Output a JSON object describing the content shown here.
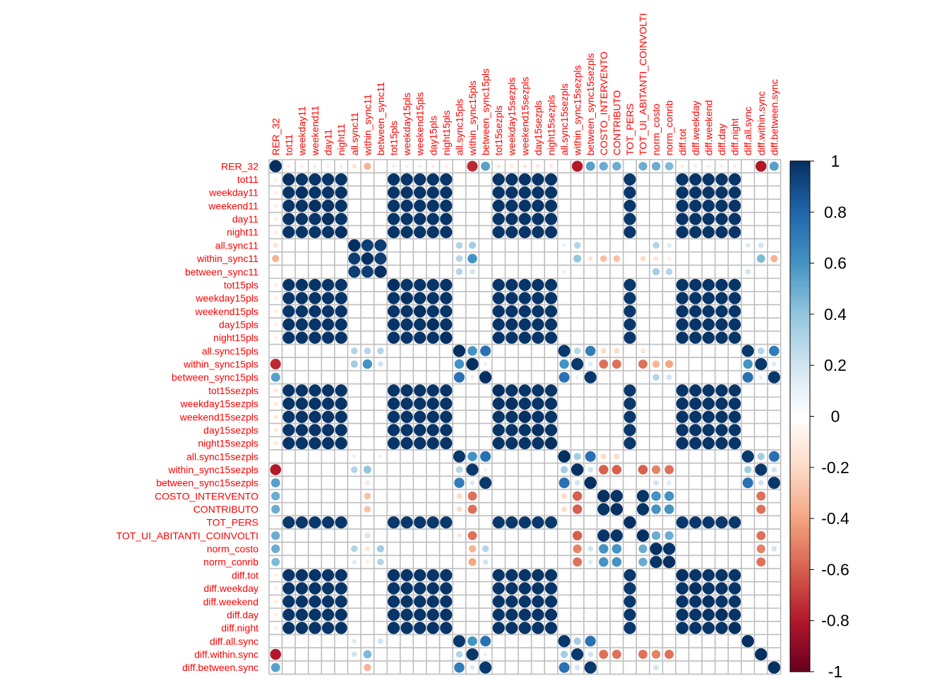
{
  "colors": {
    "label": "#FF0000",
    "grid": "#BEBEBE",
    "scale": [
      "#67001F",
      "#B2182B",
      "#D6604D",
      "#F4A582",
      "#FDDBC7",
      "#FFFFFF",
      "#D1E5F0",
      "#92C5DE",
      "#4393C3",
      "#2166AC",
      "#053061"
    ]
  },
  "chart_data": {
    "type": "heatmap",
    "style": "corrplot-circle",
    "variables": [
      "RER_32",
      "tot11",
      "weekday11",
      "weekend11",
      "day11",
      "night11",
      "all.sync11",
      "within_sync11",
      "between_sync11",
      "tot15pls",
      "weekday15pls",
      "weekend15pls",
      "day15pls",
      "night15pls",
      "all.sync15pls",
      "within_sync15pls",
      "between_sync15pls",
      "tot15sezpls",
      "weekday15sezpls",
      "weekend15sezpls",
      "day15sezpls",
      "night15sezpls",
      "all.sync15sezpls",
      "within_sync15sezpls",
      "between_sync15sezpls",
      "COSTO_INTERVENTO",
      "CONTRIBUTO",
      "TOT_PERS",
      "TOT_UI_ABITANTI_COINVOLTI",
      "norm_costo",
      "norm_conrib",
      "diff.tot",
      "diff.weekday",
      "diff.weekend",
      "diff.day",
      "diff.night",
      "diff.all.sync",
      "diff.within.sync",
      "diff.between.sync"
    ],
    "groups": [
      {
        "members": [
          "tot11",
          "weekday11",
          "weekend11",
          "day11",
          "night11",
          "tot15pls",
          "weekday15pls",
          "weekend15pls",
          "day15pls",
          "night15pls",
          "tot15sezpls",
          "weekday15sezpls",
          "weekend15sezpls",
          "day15sezpls",
          "night15sezpls",
          "diff.tot",
          "diff.weekday",
          "diff.weekend",
          "diff.day",
          "diff.night"
        ],
        "r": 0.98
      },
      {
        "members": [
          "all.sync11",
          "within_sync11",
          "between_sync11"
        ],
        "r": 0.95
      },
      {
        "members": [
          "COSTO_INTERVENTO",
          "CONTRIBUTO",
          "TOT_UI_ABITANTI_COINVOLTI"
        ],
        "r": 0.98
      },
      {
        "members": [
          "norm_costo",
          "norm_conrib"
        ],
        "r": 0.98
      },
      {
        "members": [
          "all.sync15pls",
          "all.sync15sezpls",
          "diff.all.sync"
        ],
        "r": 0.97
      },
      {
        "members": [
          "within_sync15pls",
          "within_sync15sezpls",
          "diff.within.sync"
        ],
        "r": 0.97
      },
      {
        "members": [
          "between_sync15pls",
          "between_sync15sezpls",
          "diff.between.sync"
        ],
        "r": 0.97
      }
    ],
    "pairs": [
      [
        "RER_32",
        "within_sync15pls",
        -0.75
      ],
      [
        "RER_32",
        "within_sync15sezpls",
        -0.8
      ],
      [
        "RER_32",
        "diff.within.sync",
        -0.8
      ],
      [
        "RER_32",
        "between_sync15pls",
        0.55
      ],
      [
        "RER_32",
        "between_sync15sezpls",
        0.55
      ],
      [
        "RER_32",
        "diff.between.sync",
        0.55
      ],
      [
        "RER_32",
        "within_sync11",
        -0.35
      ],
      [
        "RER_32",
        "all.sync11",
        -0.15
      ],
      [
        "RER_32",
        "COSTO_INTERVENTO",
        0.5
      ],
      [
        "RER_32",
        "CONTRIBUTO",
        0.5
      ],
      [
        "RER_32",
        "TOT_UI_ABITANTI_COINVOLTI",
        0.5
      ],
      [
        "RER_32",
        "norm_costo",
        0.5
      ],
      [
        "RER_32",
        "norm_conrib",
        0.45
      ],
      [
        "RER_32",
        "tot11",
        -0.1
      ],
      [
        "RER_32",
        "weekday11",
        -0.1
      ],
      [
        "RER_32",
        "weekend11",
        -0.1
      ],
      [
        "RER_32",
        "day11",
        -0.1
      ],
      [
        "RER_32",
        "night11",
        -0.1
      ],
      [
        "RER_32",
        "tot15pls",
        -0.1
      ],
      [
        "RER_32",
        "weekday15pls",
        -0.1
      ],
      [
        "RER_32",
        "weekend15pls",
        -0.1
      ],
      [
        "RER_32",
        "day15pls",
        -0.1
      ],
      [
        "RER_32",
        "night15pls",
        -0.1
      ],
      [
        "RER_32",
        "tot15sezpls",
        -0.12
      ],
      [
        "RER_32",
        "weekday15sezpls",
        -0.12
      ],
      [
        "RER_32",
        "weekend15sezpls",
        -0.12
      ],
      [
        "RER_32",
        "day15sezpls",
        -0.12
      ],
      [
        "RER_32",
        "night15sezpls",
        -0.12
      ],
      [
        "RER_32",
        "diff.tot",
        -0.1
      ],
      [
        "RER_32",
        "diff.weekday",
        -0.1
      ],
      [
        "RER_32",
        "diff.weekend",
        -0.1
      ],
      [
        "RER_32",
        "diff.day",
        -0.1
      ],
      [
        "RER_32",
        "diff.night",
        -0.1
      ],
      [
        "all.sync11",
        "all.sync15pls",
        0.3
      ],
      [
        "all.sync11",
        "within_sync15pls",
        0.35
      ],
      [
        "all.sync11",
        "all.sync15sezpls",
        0.1
      ],
      [
        "all.sync11",
        "within_sync15sezpls",
        0.3
      ],
      [
        "all.sync11",
        "diff.all.sync",
        0.15
      ],
      [
        "all.sync11",
        "diff.within.sync",
        0.2
      ],
      [
        "all.sync11",
        "norm_costo",
        0.3
      ],
      [
        "all.sync11",
        "norm_conrib",
        0.15
      ],
      [
        "within_sync11",
        "all.sync15pls",
        0.3
      ],
      [
        "within_sync11",
        "within_sync15pls",
        0.6
      ],
      [
        "within_sync11",
        "within_sync15sezpls",
        0.4
      ],
      [
        "within_sync11",
        "diff.within.sync",
        0.45
      ],
      [
        "within_sync11",
        "COSTO_INTERVENTO",
        -0.3
      ],
      [
        "within_sync11",
        "CONTRIBUTO",
        -0.3
      ],
      [
        "within_sync11",
        "TOT_UI_ABITANTI_COINVOLTI",
        -0.2
      ],
      [
        "within_sync11",
        "norm_costo",
        -0.15
      ],
      [
        "within_sync11",
        "norm_conrib",
        -0.1
      ],
      [
        "within_sync11",
        "diff.between.sync",
        -0.35
      ],
      [
        "within_sync11",
        "between_sync15sezpls",
        -0.15
      ],
      [
        "between_sync11",
        "all.sync15pls",
        0.3
      ],
      [
        "between_sync11",
        "within_sync15pls",
        0.2
      ],
      [
        "between_sync11",
        "norm_costo",
        0.35
      ],
      [
        "between_sync11",
        "norm_conrib",
        0.3
      ],
      [
        "between_sync11",
        "diff.all.sync",
        0.2
      ],
      [
        "between_sync11",
        "all.sync15sezpls",
        0.1
      ],
      [
        "all.sync15pls",
        "within_sync15pls",
        0.6
      ],
      [
        "all.sync15pls",
        "between_sync15pls",
        0.75
      ],
      [
        "all.sync15pls",
        "all.sync15sezpls",
        0.97
      ],
      [
        "all.sync15pls",
        "within_sync15sezpls",
        0.3
      ],
      [
        "all.sync15pls",
        "between_sync15sezpls",
        0.7
      ],
      [
        "all.sync15pls",
        "diff.within.sync",
        0.3
      ],
      [
        "all.sync15pls",
        "diff.between.sync",
        0.7
      ],
      [
        "all.sync15pls",
        "COSTO_INTERVENTO",
        -0.2
      ],
      [
        "all.sync15pls",
        "CONTRIBUTO",
        -0.2
      ],
      [
        "all.sync15pls",
        "TOT_UI_ABITANTI_COINVOLTI",
        -0.15
      ],
      [
        "within_sync15pls",
        "between_sync15pls",
        0.1
      ],
      [
        "within_sync15pls",
        "all.sync15sezpls",
        0.6
      ],
      [
        "within_sync15pls",
        "between_sync15sezpls",
        0.15
      ],
      [
        "within_sync15pls",
        "diff.all.sync",
        0.6
      ],
      [
        "within_sync15pls",
        "diff.between.sync",
        0.15
      ],
      [
        "within_sync15pls",
        "COSTO_INTERVENTO",
        -0.55
      ],
      [
        "within_sync15pls",
        "CONTRIBUTO",
        -0.55
      ],
      [
        "within_sync15pls",
        "TOT_UI_ABITANTI_COINVOLTI",
        -0.55
      ],
      [
        "within_sync15pls",
        "norm_costo",
        -0.35
      ],
      [
        "within_sync15pls",
        "norm_conrib",
        -0.4
      ],
      [
        "between_sync15pls",
        "all.sync15sezpls",
        0.75
      ],
      [
        "between_sync15pls",
        "within_sync15sezpls",
        0.1
      ],
      [
        "between_sync15pls",
        "diff.all.sync",
        0.75
      ],
      [
        "between_sync15pls",
        "diff.within.sync",
        0.1
      ],
      [
        "between_sync15pls",
        "norm_costo",
        0.3
      ],
      [
        "between_sync15pls",
        "norm_conrib",
        0.2
      ],
      [
        "all.sync15sezpls",
        "within_sync15sezpls",
        0.35
      ],
      [
        "all.sync15sezpls",
        "between_sync15sezpls",
        0.75
      ],
      [
        "all.sync15sezpls",
        "diff.within.sync",
        0.35
      ],
      [
        "all.sync15sezpls",
        "diff.between.sync",
        0.75
      ],
      [
        "all.sync15sezpls",
        "COSTO_INTERVENTO",
        -0.2
      ],
      [
        "all.sync15sezpls",
        "CONTRIBUTO",
        -0.2
      ],
      [
        "within_sync15sezpls",
        "between_sync15sezpls",
        0.2
      ],
      [
        "within_sync15sezpls",
        "diff.all.sync",
        0.35
      ],
      [
        "within_sync15sezpls",
        "diff.between.sync",
        0.2
      ],
      [
        "within_sync15sezpls",
        "COSTO_INTERVENTO",
        -0.6
      ],
      [
        "within_sync15sezpls",
        "CONTRIBUTO",
        -0.6
      ],
      [
        "within_sync15sezpls",
        "TOT_UI_ABITANTI_COINVOLTI",
        -0.6
      ],
      [
        "within_sync15sezpls",
        "norm_costo",
        -0.5
      ],
      [
        "within_sync15sezpls",
        "norm_conrib",
        -0.55
      ],
      [
        "between_sync15sezpls",
        "diff.all.sync",
        0.75
      ],
      [
        "between_sync15sezpls",
        "diff.within.sync",
        0.2
      ],
      [
        "between_sync15sezpls",
        "norm_costo",
        0.2
      ],
      [
        "between_sync15sezpls",
        "norm_conrib",
        0.15
      ],
      [
        "COSTO_INTERVENTO",
        "norm_costo",
        0.6
      ],
      [
        "COSTO_INTERVENTO",
        "norm_conrib",
        0.6
      ],
      [
        "CONTRIBUTO",
        "norm_costo",
        0.6
      ],
      [
        "CONTRIBUTO",
        "norm_conrib",
        0.6
      ],
      [
        "TOT_UI_ABITANTI_COINVOLTI",
        "norm_costo",
        0.5
      ],
      [
        "TOT_UI_ABITANTI_COINVOLTI",
        "norm_conrib",
        0.5
      ],
      [
        "COSTO_INTERVENTO",
        "diff.within.sync",
        -0.55
      ],
      [
        "CONTRIBUTO",
        "diff.within.sync",
        -0.55
      ],
      [
        "TOT_UI_ABITANTI_COINVOLTI",
        "diff.within.sync",
        -0.55
      ],
      [
        "norm_costo",
        "diff.within.sync",
        -0.5
      ],
      [
        "norm_conrib",
        "diff.within.sync",
        -0.55
      ],
      [
        "norm_costo",
        "diff.between.sync",
        0.2
      ],
      [
        "TOT_PERS",
        "tot11",
        0.97
      ],
      [
        "TOT_PERS",
        "weekday11",
        0.97
      ],
      [
        "TOT_PERS",
        "weekend11",
        0.97
      ],
      [
        "TOT_PERS",
        "day11",
        0.97
      ],
      [
        "TOT_PERS",
        "night11",
        0.97
      ],
      [
        "TOT_PERS",
        "tot15pls",
        0.97
      ],
      [
        "TOT_PERS",
        "weekday15pls",
        0.97
      ],
      [
        "TOT_PERS",
        "weekend15pls",
        0.97
      ],
      [
        "TOT_PERS",
        "day15pls",
        0.97
      ],
      [
        "TOT_PERS",
        "night15pls",
        0.97
      ],
      [
        "TOT_PERS",
        "tot15sezpls",
        0.97
      ],
      [
        "TOT_PERS",
        "weekday15sezpls",
        0.97
      ],
      [
        "TOT_PERS",
        "weekend15sezpls",
        0.97
      ],
      [
        "TOT_PERS",
        "day15sezpls",
        0.97
      ],
      [
        "TOT_PERS",
        "night15sezpls",
        0.97
      ],
      [
        "TOT_PERS",
        "diff.tot",
        0.97
      ],
      [
        "TOT_PERS",
        "diff.weekday",
        0.97
      ],
      [
        "TOT_PERS",
        "diff.weekend",
        0.97
      ],
      [
        "TOT_PERS",
        "diff.day",
        0.97
      ],
      [
        "TOT_PERS",
        "diff.night",
        0.97
      ]
    ],
    "colorbar": {
      "min": -1,
      "max": 1,
      "tick_labels": [
        "1",
        "0.8",
        "0.6",
        "0.4",
        "0.2",
        "0",
        "-0.2",
        "-0.4",
        "-0.6",
        "-0.8",
        "-1"
      ]
    },
    "diagonal": 1
  }
}
